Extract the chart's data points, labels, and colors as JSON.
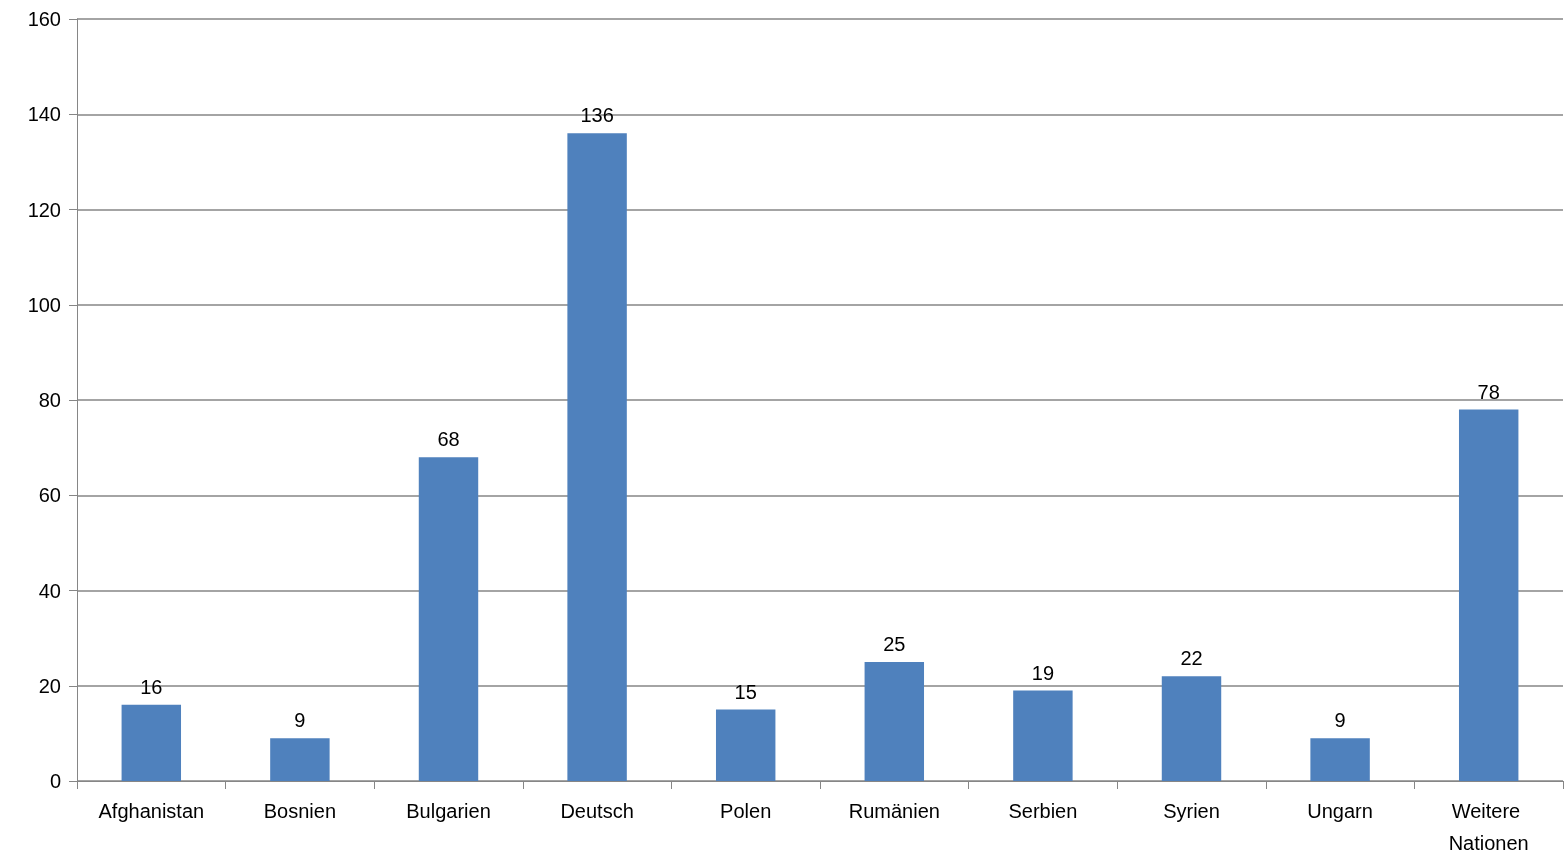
{
  "chart_data": {
    "type": "bar",
    "categories": [
      "Afghanistan",
      "Bosnien",
      "Bulgarien",
      "Deutsch",
      "Polen",
      "Rumänien",
      "Serbien",
      "Syrien",
      "Ungarn",
      "Weitere Nationen"
    ],
    "values": [
      16,
      9,
      68,
      136,
      15,
      25,
      19,
      22,
      9,
      78
    ],
    "color": "#4f81bd",
    "ylim": [
      0,
      160
    ],
    "yticks": [
      0,
      20,
      40,
      60,
      80,
      100,
      120,
      140,
      160
    ],
    "grid": "y",
    "data_labels": true
  }
}
